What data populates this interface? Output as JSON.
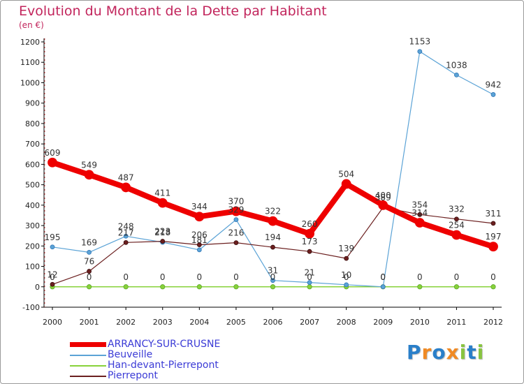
{
  "title": "Evolution du Montant de la Dette par Habitant",
  "subtitle": "(en €)",
  "logo": {
    "letters": [
      "P",
      "r",
      "o",
      "x",
      "i",
      "t",
      "i"
    ],
    "colors": [
      "#2a7fc9",
      "#f08a24",
      "#2a7fc9",
      "#f08a24",
      "#88c440",
      "#2a7fc9",
      "#88c440"
    ]
  },
  "chart_data": {
    "type": "line",
    "x": [
      "2000",
      "2001",
      "2002",
      "2003",
      "2004",
      "2005",
      "2006",
      "2007",
      "2008",
      "2009",
      "2010",
      "2011",
      "2012"
    ],
    "ylim": [
      -100,
      1200
    ],
    "yticks": [
      "-100",
      "0",
      "100",
      "200",
      "300",
      "400",
      "500",
      "600",
      "700",
      "800",
      "900",
      "1000",
      "1100",
      "1200"
    ],
    "grid": false,
    "legend_position": "bottom-left",
    "series": [
      {
        "name": "ARRANCY-SUR-CRUSNE",
        "color": "#ee0000",
        "values": [
          609,
          549,
          487,
          411,
          344,
          370,
          322,
          260,
          504,
          400,
          314,
          254,
          197
        ],
        "labels": [
          "609",
          "549",
          "487",
          "411",
          "344",
          "370",
          "322",
          "260",
          "504",
          "400",
          "314",
          "254",
          "197"
        ]
      },
      {
        "name": "Beuveille",
        "color": "#5ba3d6",
        "values": [
          195,
          169,
          248,
          218,
          181,
          329,
          31,
          21,
          10,
          0,
          1153,
          1038,
          942
        ],
        "labels": [
          "195",
          "169",
          "248",
          "218",
          "181",
          "329",
          "31",
          "21",
          "10",
          "0",
          "1153",
          "1038",
          "942"
        ]
      },
      {
        "name": "Han-devant-Pierrepont",
        "color": "#88d23a",
        "values": [
          0,
          0,
          0,
          0,
          0,
          0,
          0,
          0,
          0,
          0,
          0,
          0,
          0
        ],
        "labels": [
          "0",
          "0",
          "0",
          "0",
          "0",
          "0",
          "0",
          "0",
          "0",
          "0",
          "0",
          "0",
          "0"
        ]
      },
      {
        "name": "Pierrepont",
        "color": "#6b1f1f",
        "values": [
          12,
          76,
          217,
          223,
          206,
          216,
          194,
          173,
          139,
          389,
          354,
          332,
          311
        ],
        "labels": [
          "12",
          "76",
          "217",
          "223",
          "206",
          "216",
          "194",
          "173",
          "139",
          "389",
          "354",
          "332",
          "311"
        ]
      }
    ]
  }
}
